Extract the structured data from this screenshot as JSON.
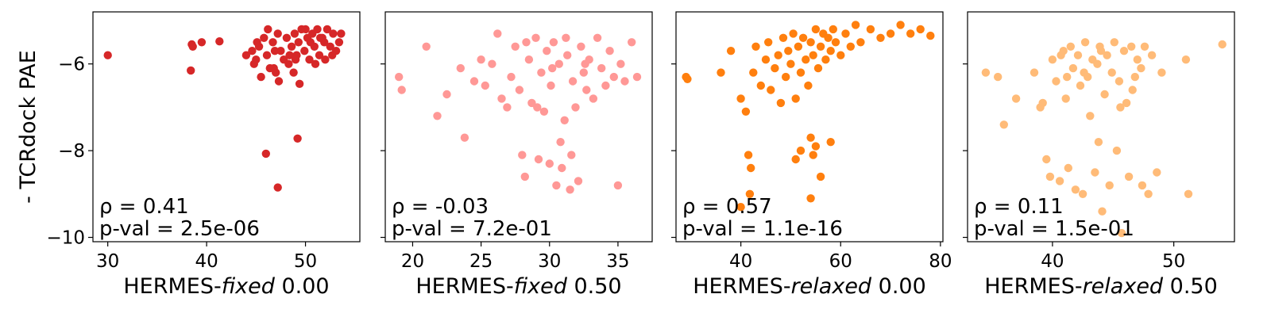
{
  "figure": {
    "ylabel": "- TCRdock PAE"
  },
  "chart_data": [
    {
      "type": "scatter",
      "xlabel_prefix": "HERMES-",
      "xlabel_method": "fixed",
      "xlabel_suffix": " 0.00",
      "color": "#d62728",
      "xlim": [
        28.5,
        55.5
      ],
      "ylim": [
        -10.1,
        -4.8
      ],
      "xticks": [
        30,
        40,
        50
      ],
      "yticks": [
        -6,
        -8,
        -10
      ],
      "rho": "ρ = 0.41",
      "pval": "p-val = 2.5e-06",
      "points": [
        [
          30,
          -5.8
        ],
        [
          38.5,
          -5.55
        ],
        [
          38.6,
          -5.6
        ],
        [
          39.5,
          -5.5
        ],
        [
          38.4,
          -6.15
        ],
        [
          41.3,
          -5.48
        ],
        [
          46,
          -8.07
        ],
        [
          47.2,
          -8.85
        ],
        [
          49.2,
          -7.72
        ],
        [
          49.4,
          -6.46
        ],
        [
          44,
          -5.8
        ],
        [
          44.6,
          -5.7
        ],
        [
          45,
          -5.9
        ],
        [
          45.3,
          -5.6
        ],
        [
          45.8,
          -5.4
        ],
        [
          46.1,
          -5.8
        ],
        [
          46.4,
          -6.1
        ],
        [
          46.7,
          -5.5
        ],
        [
          47,
          -6.2
        ],
        [
          47.2,
          -5.3
        ],
        [
          47.5,
          -5.7
        ],
        [
          47.8,
          -5.9
        ],
        [
          48.1,
          -5.4
        ],
        [
          48.3,
          -6.0
        ],
        [
          48.6,
          -5.6
        ],
        [
          48.9,
          -5.3
        ],
        [
          49.1,
          -5.8
        ],
        [
          49.3,
          -5.5
        ],
        [
          49.6,
          -5.2
        ],
        [
          49.9,
          -5.7
        ],
        [
          50.2,
          -5.4
        ],
        [
          50.4,
          -5.9
        ],
        [
          50.7,
          -5.3
        ],
        [
          50.9,
          -5.6
        ],
        [
          51.2,
          -5.2
        ],
        [
          51.4,
          -5.8
        ],
        [
          51.7,
          -5.4
        ],
        [
          51.9,
          -5.5
        ],
        [
          52.2,
          -5.2
        ],
        [
          52.5,
          -5.6
        ],
        [
          52.8,
          -5.3
        ],
        [
          53.1,
          -5.7
        ],
        [
          53.6,
          -5.3
        ],
        [
          45.5,
          -6.3
        ],
        [
          46.8,
          -6.1
        ],
        [
          48.8,
          -6.2
        ],
        [
          51,
          -6.0
        ],
        [
          47.3,
          -6.4
        ],
        [
          44.8,
          -6.0
        ],
        [
          46.2,
          -5.2
        ],
        [
          50,
          -5.2
        ],
        [
          49,
          -5.9
        ],
        [
          52,
          -5.9
        ],
        [
          45.1,
          -5.5
        ],
        [
          46.9,
          -5.7
        ],
        [
          48.4,
          -5.8
        ],
        [
          50.5,
          -5.5
        ],
        [
          51.5,
          -5.4
        ],
        [
          53.4,
          -5.5
        ],
        [
          52.7,
          -5.8
        ]
      ]
    },
    {
      "type": "scatter",
      "xlabel_prefix": "HERMES-",
      "xlabel_method": "fixed",
      "xlabel_suffix": " 0.50",
      "color": "#ff9896",
      "xlim": [
        18,
        37.5
      ],
      "ylim": [
        -10.1,
        -4.8
      ],
      "xticks": [
        20,
        25,
        30,
        35
      ],
      "yticks": [
        -6,
        -8,
        -10
      ],
      "rho": "ρ = -0.03",
      "pval": "p-val = 7.2e-01",
      "points": [
        [
          19,
          -6.3
        ],
        [
          19.2,
          -6.6
        ],
        [
          21,
          -5.6
        ],
        [
          21.8,
          -7.2
        ],
        [
          22.5,
          -6.7
        ],
        [
          23.5,
          -6.1
        ],
        [
          23.8,
          -7.7
        ],
        [
          24.5,
          -6.4
        ],
        [
          25,
          -5.9
        ],
        [
          25.3,
          -6.5
        ],
        [
          25.8,
          -6.0
        ],
        [
          26.2,
          -5.3
        ],
        [
          26.5,
          -6.8
        ],
        [
          26.9,
          -7.0
        ],
        [
          27.2,
          -6.3
        ],
        [
          27.5,
          -5.6
        ],
        [
          27.8,
          -6.6
        ],
        [
          28,
          -8.1
        ],
        [
          28.2,
          -8.6
        ],
        [
          28.5,
          -5.9
        ],
        [
          28.7,
          -6.9
        ],
        [
          29,
          -5.4
        ],
        [
          29.2,
          -8.2
        ],
        [
          29.4,
          -6.2
        ],
        [
          29.6,
          -7.1
        ],
        [
          29.8,
          -5.7
        ],
        [
          30,
          -8.3
        ],
        [
          30.1,
          -6.5
        ],
        [
          30.3,
          -5.5
        ],
        [
          30.5,
          -8.8
        ],
        [
          30.7,
          -6.0
        ],
        [
          30.9,
          -8.4
        ],
        [
          31.1,
          -7.3
        ],
        [
          31.3,
          -5.8
        ],
        [
          31.5,
          -8.9
        ],
        [
          31.7,
          -6.4
        ],
        [
          31.9,
          -7.0
        ],
        [
          32.1,
          -8.7
        ],
        [
          32.3,
          -5.6
        ],
        [
          32.5,
          -6.2
        ],
        [
          32.7,
          -6.6
        ],
        [
          32.9,
          -5.9
        ],
        [
          33.2,
          -6.8
        ],
        [
          33.5,
          -5.4
        ],
        [
          33.8,
          -6.1
        ],
        [
          34.1,
          -6.5
        ],
        [
          34.4,
          -5.7
        ],
        [
          34.7,
          -6.3
        ],
        [
          35,
          -8.8
        ],
        [
          35.2,
          -6.0
        ],
        [
          35.5,
          -6.4
        ],
        [
          36,
          -5.5
        ],
        [
          36.4,
          -6.3
        ],
        [
          28.3,
          -5.5
        ],
        [
          30.2,
          -6.1
        ],
        [
          31.2,
          -5.4
        ],
        [
          32.6,
          -6.0
        ],
        [
          29.1,
          -7.0
        ],
        [
          30.8,
          -7.8
        ],
        [
          31.6,
          -8.1
        ]
      ]
    },
    {
      "type": "scatter",
      "xlabel_prefix": "HERMES-",
      "xlabel_method": "relaxed",
      "xlabel_suffix": " 0.00",
      "color": "#ff7f0e",
      "xlim": [
        27,
        80.5
      ],
      "ylim": [
        -10.1,
        -4.8
      ],
      "xticks": [
        40,
        60,
        80
      ],
      "yticks": [
        -6,
        -8,
        -10
      ],
      "rho": "ρ = 0.57",
      "pval": "p-val = 1.1e-16",
      "points": [
        [
          29,
          -6.3
        ],
        [
          29.3,
          -6.35
        ],
        [
          36,
          -6.2
        ],
        [
          38,
          -5.7
        ],
        [
          40,
          -6.8
        ],
        [
          41,
          -7.1
        ],
        [
          41.5,
          -8.1
        ],
        [
          42,
          -8.4
        ],
        [
          41.8,
          -9.0
        ],
        [
          40,
          -9.3
        ],
        [
          42.5,
          -6.2
        ],
        [
          43,
          -5.6
        ],
        [
          44,
          -6.5
        ],
        [
          45,
          -5.9
        ],
        [
          45.5,
          -5.5
        ],
        [
          46,
          -6.6
        ],
        [
          46.8,
          -6.1
        ],
        [
          47.5,
          -5.8
        ],
        [
          48,
          -6.9
        ],
        [
          48.5,
          -5.4
        ],
        [
          49,
          -6.3
        ],
        [
          49.5,
          -5.7
        ],
        [
          50,
          -6.0
        ],
        [
          50.5,
          -5.3
        ],
        [
          51,
          -6.8
        ],
        [
          51.5,
          -5.6
        ],
        [
          52,
          -6.2
        ],
        [
          52.5,
          -5.4
        ],
        [
          53,
          -5.9
        ],
        [
          53.5,
          -6.5
        ],
        [
          54,
          -5.5
        ],
        [
          54.5,
          -5.8
        ],
        [
          55,
          -5.2
        ],
        [
          55.5,
          -6.1
        ],
        [
          56,
          -5.6
        ],
        [
          56.5,
          -5.3
        ],
        [
          57,
          -5.9
        ],
        [
          57.5,
          -5.4
        ],
        [
          58,
          -5.7
        ],
        [
          58.5,
          -5.2
        ],
        [
          59,
          -5.5
        ],
        [
          60,
          -5.8
        ],
        [
          61,
          -5.3
        ],
        [
          62,
          -5.6
        ],
        [
          63,
          -5.1
        ],
        [
          64,
          -5.5
        ],
        [
          66,
          -5.2
        ],
        [
          68,
          -5.4
        ],
        [
          70,
          -5.3
        ],
        [
          72,
          -5.1
        ],
        [
          74,
          -5.3
        ],
        [
          76,
          -5.2
        ],
        [
          78,
          -5.35
        ],
        [
          51,
          -8.2
        ],
        [
          52,
          -8.0
        ],
        [
          54,
          -7.7
        ],
        [
          54.5,
          -8.1
        ],
        [
          55,
          -7.9
        ],
        [
          56,
          -8.6
        ],
        [
          58,
          -7.8
        ],
        [
          54,
          -9.1
        ]
      ]
    },
    {
      "type": "scatter",
      "xlabel_prefix": "HERMES-",
      "xlabel_method": "relaxed",
      "xlabel_suffix": " 0.50",
      "color": "#ffbb78",
      "xlim": [
        33,
        55
      ],
      "ylim": [
        -10.1,
        -4.8
      ],
      "xticks": [
        40,
        50
      ],
      "yticks": [
        -6,
        -8,
        -10
      ],
      "rho": "ρ = 0.11",
      "pval": "p-val = 1.5e-01",
      "points": [
        [
          34.5,
          -6.2
        ],
        [
          35.5,
          -6.3
        ],
        [
          36,
          -7.4
        ],
        [
          37,
          -6.8
        ],
        [
          38.5,
          -6.2
        ],
        [
          39,
          -7.0
        ],
        [
          39.2,
          -6.9
        ],
        [
          39.5,
          -8.2
        ],
        [
          39.8,
          -8.6
        ],
        [
          40,
          -5.9
        ],
        [
          40.3,
          -6.4
        ],
        [
          40.6,
          -8.7
        ],
        [
          40.9,
          -5.7
        ],
        [
          41.1,
          -6.8
        ],
        [
          41.3,
          -8.4
        ],
        [
          41.5,
          -5.6
        ],
        [
          41.7,
          -6.1
        ],
        [
          41.9,
          -8.9
        ],
        [
          42.1,
          -5.8
        ],
        [
          42.3,
          -6.5
        ],
        [
          42.5,
          -9.0
        ],
        [
          42.7,
          -5.5
        ],
        [
          42.9,
          -6.3
        ],
        [
          43.1,
          -7.2
        ],
        [
          43.3,
          -5.9
        ],
        [
          43.5,
          -8.5
        ],
        [
          43.7,
          -6.0
        ],
        [
          43.9,
          -5.6
        ],
        [
          44.1,
          -9.4
        ],
        [
          44.3,
          -6.7
        ],
        [
          44.5,
          -5.8
        ],
        [
          44.7,
          -8.8
        ],
        [
          44.9,
          -6.2
        ],
        [
          45.1,
          -5.5
        ],
        [
          45.3,
          -8.0
        ],
        [
          45.5,
          -6.4
        ],
        [
          45.7,
          -9.9
        ],
        [
          45.9,
          -5.7
        ],
        [
          46.1,
          -6.9
        ],
        [
          46.3,
          -8.6
        ],
        [
          46.5,
          -5.6
        ],
        [
          46.8,
          -6.3
        ],
        [
          47,
          -5.9
        ],
        [
          47.3,
          -6.1
        ],
        [
          47.6,
          -5.6
        ],
        [
          47.9,
          -9.0
        ],
        [
          48.2,
          -5.8
        ],
        [
          48.6,
          -8.5
        ],
        [
          49,
          -6.2
        ],
        [
          51,
          -5.9
        ],
        [
          51.2,
          -9.0
        ],
        [
          54,
          -5.55
        ],
        [
          42.6,
          -6.2
        ],
        [
          44,
          -5.7
        ],
        [
          45.6,
          -7.0
        ],
        [
          43.8,
          -7.8
        ],
        [
          40.7,
          -5.8
        ],
        [
          46.6,
          -6.6
        ],
        [
          47.4,
          -8.8
        ],
        [
          41.2,
          -6.3
        ]
      ]
    }
  ]
}
